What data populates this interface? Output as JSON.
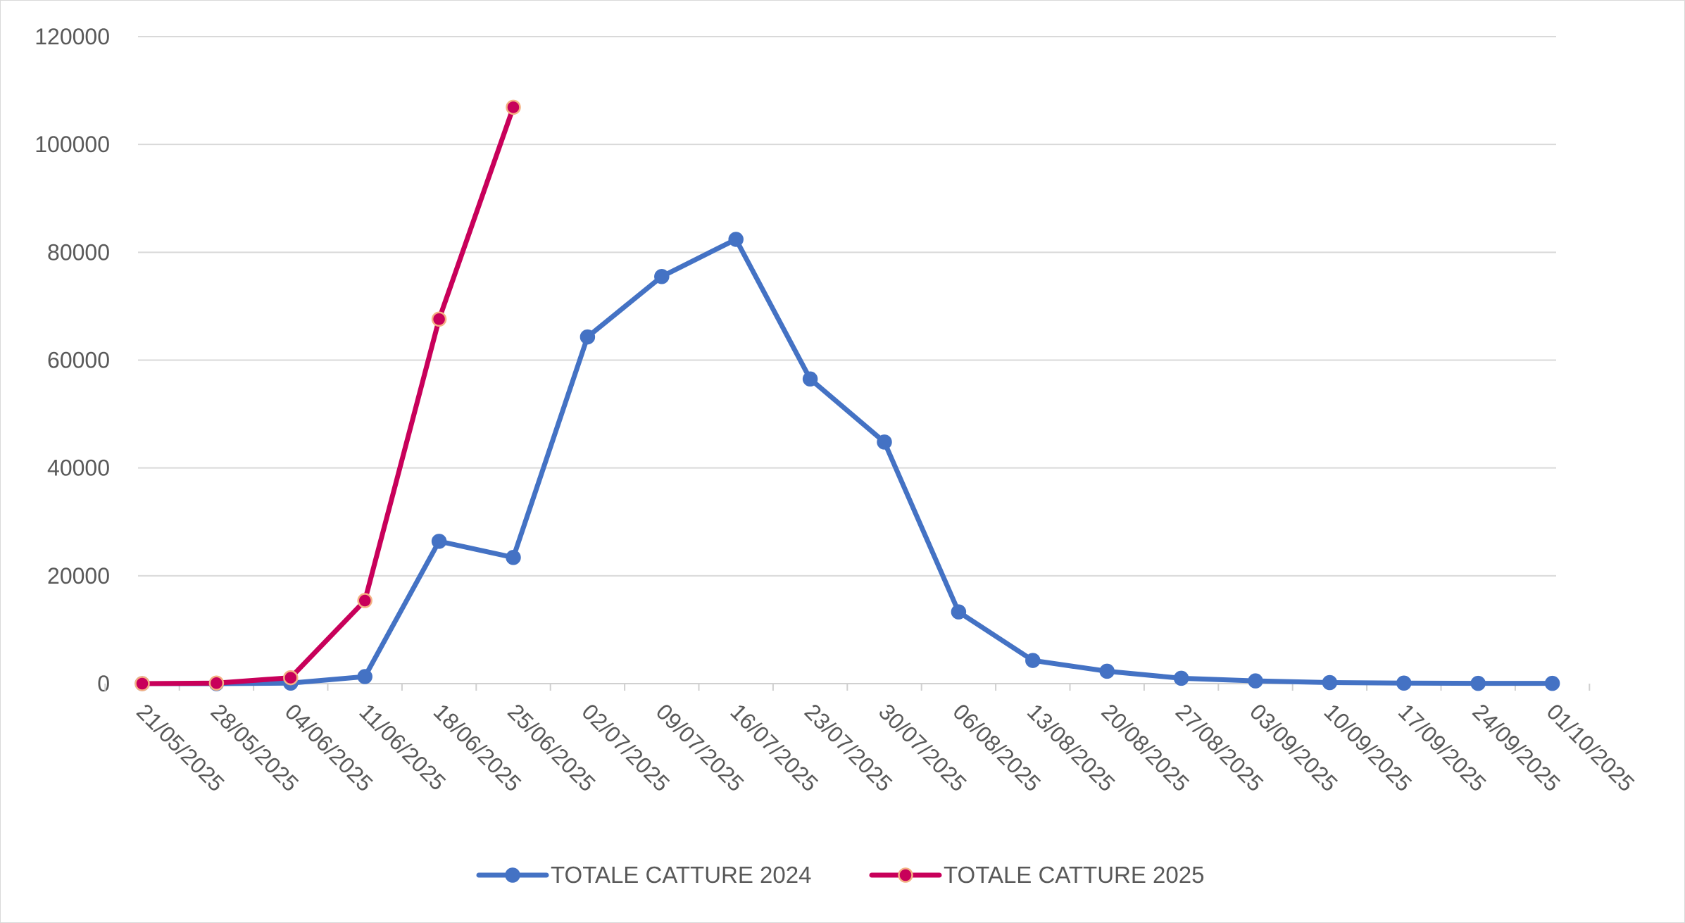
{
  "chart_data": {
    "type": "line",
    "title": "",
    "xlabel": "",
    "ylabel": "",
    "ylim": [
      0,
      120000
    ],
    "yticks": [
      "0",
      "20000",
      "40000",
      "60000",
      "80000",
      "100000",
      "120000"
    ],
    "grid": true,
    "legend": "bottom",
    "categories": [
      "21/05/2025",
      "28/05/2025",
      "04/06/2025",
      "11/06/2025",
      "18/06/2025",
      "25/06/2025",
      "02/07/2025",
      "09/07/2025",
      "16/07/2025",
      "23/07/2025",
      "30/07/2025",
      "06/08/2025",
      "13/08/2025",
      "20/08/2025",
      "27/08/2025",
      "03/09/2025",
      "10/09/2025",
      "17/09/2025",
      "24/09/2025",
      "01/10/2025"
    ],
    "series": [
      {
        "name": "TOTALE CATTURE 2024",
        "color": "#4472c4",
        "marker_fill": "#4472c4",
        "values": [
          0,
          0,
          100,
          1300,
          26400,
          23400,
          64300,
          75500,
          82400,
          56500,
          44800,
          13300,
          4300,
          2300,
          1000,
          500,
          200,
          100,
          50,
          50
        ]
      },
      {
        "name": "TOTALE CATTURE 2025",
        "color": "#c8005a",
        "marker_fill": "#c8005a",
        "marker_stroke": "#f4b183",
        "values": [
          0,
          100,
          1100,
          15400,
          67600,
          106900,
          null,
          null,
          null,
          null,
          null,
          null,
          null,
          null,
          null,
          null,
          null,
          null,
          null,
          null
        ]
      }
    ]
  }
}
